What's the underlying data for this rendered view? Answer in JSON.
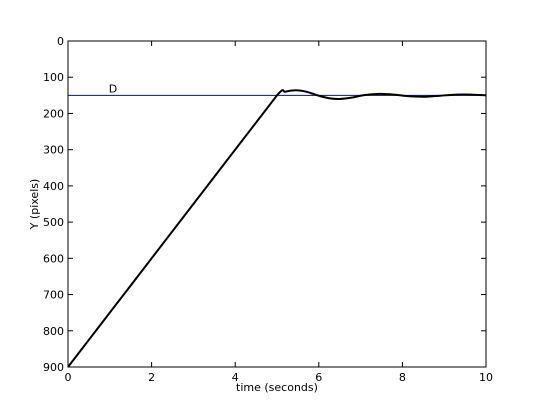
{
  "chart_data": {
    "type": "line",
    "title": "",
    "xlabel": "time (seconds)",
    "ylabel": "Y (pixels)",
    "xlim": [
      0,
      10
    ],
    "ylim": [
      900,
      0
    ],
    "y_inverted": true,
    "grid": false,
    "x_ticks": [
      "0",
      "2",
      "4",
      "6",
      "8",
      "10"
    ],
    "x_tick_values": [
      0,
      2,
      4,
      6,
      8,
      10
    ],
    "y_ticks": [
      "0",
      "100",
      "200",
      "300",
      "400",
      "500",
      "600",
      "700",
      "800",
      "900"
    ],
    "y_tick_values": [
      0,
      100,
      200,
      300,
      400,
      500,
      600,
      700,
      800,
      900
    ],
    "reference_line": {
      "label": "D",
      "y": 150,
      "color": "#0000ff",
      "label_x": 1.0
    },
    "series": [
      {
        "color": "#000000",
        "x": [
          0,
          1,
          2,
          3,
          4,
          5,
          5.2,
          5.45,
          5.7,
          6.0,
          6.25,
          6.5,
          6.8,
          7.1,
          7.45,
          7.8,
          8.1,
          8.5,
          8.9,
          9.3,
          9.65,
          10
        ],
        "y": [
          900,
          750,
          600,
          450,
          300,
          150,
          140,
          136,
          140,
          151,
          158,
          160,
          156,
          149,
          146,
          148,
          152,
          154,
          151,
          148,
          148,
          150
        ]
      }
    ]
  }
}
